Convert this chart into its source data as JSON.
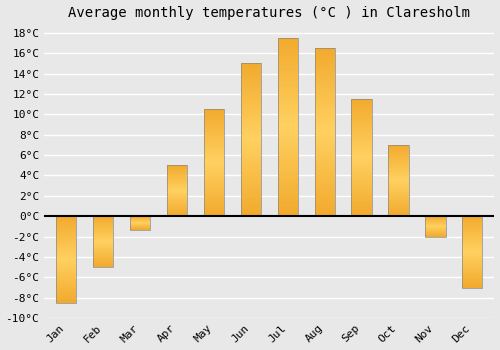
{
  "title": "Average monthly temperatures (°C ) in Claresholm",
  "months": [
    "Jan",
    "Feb",
    "Mar",
    "Apr",
    "May",
    "Jun",
    "Jul",
    "Aug",
    "Sep",
    "Oct",
    "Nov",
    "Dec"
  ],
  "temperatures": [
    -8.5,
    -5.0,
    -1.3,
    5.0,
    10.5,
    15.0,
    17.5,
    16.5,
    11.5,
    7.0,
    -2.0,
    -7.0
  ],
  "bar_color_light": "#FFD060",
  "bar_color_dark": "#E8900A",
  "bar_edge_color": "#888888",
  "ylim": [
    -10,
    18
  ],
  "yticks": [
    -10,
    -8,
    -6,
    -4,
    -2,
    0,
    2,
    4,
    6,
    8,
    10,
    12,
    14,
    16,
    18
  ],
  "background_color": "#e8e8e8",
  "grid_color": "#ffffff",
  "title_fontsize": 10,
  "tick_fontsize": 8,
  "zero_line_color": "#000000",
  "bar_width": 0.55
}
